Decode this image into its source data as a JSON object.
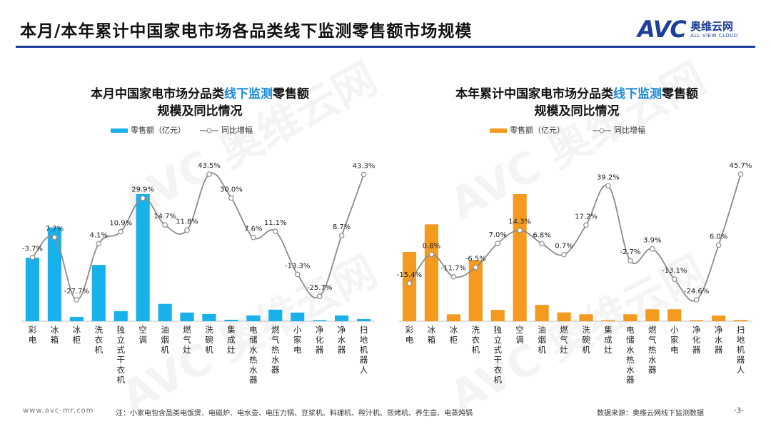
{
  "header": {
    "title": "本月/本年累计中国家电市场各品类线下监测零售额市场规模",
    "logo_mark": "AVC",
    "logo_cn": "奥维云网",
    "logo_en": "ALL VIEW CLOUD"
  },
  "colors": {
    "brand": "#1f3f9a",
    "highlight": "#1b8ad8",
    "bar_left": "#18b1ea",
    "bar_right": "#f39a1f",
    "line": "#8c8c8c"
  },
  "watermark": "AVC 奥维云网",
  "footer": {
    "url": "www.avc-mr.com",
    "note": "注：小家电包含品类电饭煲、电磁炉、电水壶、电压力锅、豆浆机、料理机、榨汁机、煎烤机、养生壶、电蒸炖锅",
    "source": "数据来源：奥维云网线下监测数据",
    "page": "-3-"
  },
  "chart_data": [
    {
      "type": "bar",
      "title_pre": "本月中国家电市场分品类",
      "title_hl": "线下监测",
      "title_post": "零售额",
      "title_line2": "规模及同比情况",
      "legend": {
        "bar": "零售额（亿元）",
        "line": "同比增幅"
      },
      "categories": [
        "彩电",
        "冰箱",
        "冰柜",
        "洗衣机",
        "独立式干衣机",
        "空调",
        "油烟机",
        "燃气灶",
        "洗碗机",
        "集成灶",
        "电储水热水器",
        "燃气热水器",
        "小家电",
        "净化器",
        "净水器",
        "扫地机器人"
      ],
      "series": [
        {
          "name": "零售额（亿元）",
          "kind": "bar",
          "values": [
            44,
            65,
            3,
            39,
            7,
            88,
            12,
            6,
            5,
            1,
            4,
            8,
            6,
            0.5,
            4,
            1.5
          ]
        },
        {
          "name": "同比增幅",
          "kind": "line",
          "values": [
            -3.7,
            7.7,
            -27.7,
            4.1,
            10.9,
            29.9,
            14.7,
            11.8,
            43.5,
            30.0,
            7.6,
            11.1,
            -13.3,
            -25.7,
            8.7,
            43.3
          ],
          "labels": [
            "-3.7%",
            "7.7%",
            "-27.7%",
            "4.1%",
            "10.9%",
            "29.9%",
            "14.7%",
            "11.8%",
            "43.5%",
            "30.0%",
            "7.6%",
            "11.1%",
            "-13.3%",
            "-25.7%",
            "8.7%",
            "43.3%"
          ]
        }
      ]
    },
    {
      "type": "bar",
      "title_pre": "本年累计中国家电市场分品类",
      "title_hl": "线下监测",
      "title_post": "零售额",
      "title_line2": "规模及同比情况",
      "legend": {
        "bar": "零售额（亿元）",
        "line": "同比增幅"
      },
      "categories": [
        "彩电",
        "冰箱",
        "冰柜",
        "洗衣机",
        "独立式干衣机",
        "空调",
        "油烟机",
        "燃气灶",
        "洗碗机",
        "集成灶",
        "电储水热水器",
        "燃气热水器",
        "小家电",
        "净化器",
        "净水器",
        "扫地机器人"
      ],
      "series": [
        {
          "name": "零售额（亿元）",
          "kind": "bar",
          "values": [
            110,
            154,
            11,
            97,
            18,
            202,
            26,
            14,
            11,
            1.5,
            11,
            19,
            19,
            1.5,
            9,
            2
          ]
        },
        {
          "name": "同比增幅",
          "kind": "line",
          "values": [
            -15.4,
            0.8,
            -11.7,
            -6.5,
            7.0,
            14.3,
            6.8,
            0.7,
            17.2,
            39.2,
            -2.7,
            3.9,
            -13.1,
            -24.6,
            6.0,
            45.7
          ],
          "labels": [
            "-15.4%",
            "0.8%",
            "-11.7%",
            "-6.5%",
            "7.0%",
            "14.3%",
            "6.8%",
            "0.7%",
            "17.2%",
            "39.2%",
            "-2.7%",
            "3.9%",
            "-13.1%",
            "-24.6%",
            "6.0%",
            "45.7%"
          ]
        }
      ]
    }
  ]
}
